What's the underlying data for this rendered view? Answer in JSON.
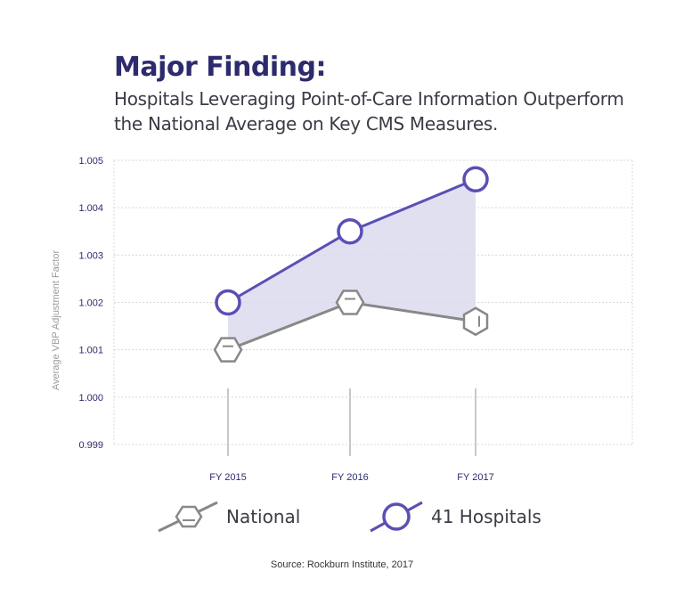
{
  "header": {
    "title": "Major Finding:",
    "subtitle": "Hospitals Leveraging Point-of-Care Information Outperform the National Average on Key CMS Measures."
  },
  "chart_data": {
    "type": "line",
    "categories": [
      "FY 2015",
      "FY 2016",
      "FY 2017"
    ],
    "ylabel": "Average VBP Adjustment Factor",
    "xlabel": "",
    "ylim": [
      0.999,
      1.005
    ],
    "yticks": [
      "1.005",
      "1.004",
      "1.003",
      "1.002",
      "1.001",
      "1.000",
      "0.999"
    ],
    "grid": true,
    "shaded_gap_between_series": true,
    "series": [
      {
        "name": "41 Hospitals",
        "values": [
          1.002,
          1.0035,
          1.0046
        ],
        "color": "#5a4fb5",
        "marker": "circle"
      },
      {
        "name": "National",
        "values": [
          1.001,
          1.002,
          1.0016
        ],
        "color": "#888888",
        "marker": "hexagon"
      }
    ],
    "legend_position": "bottom"
  },
  "legend": {
    "national": "National",
    "hospitals": "41 Hospitals"
  },
  "footer": {
    "source": "Source: Rockburn Institute, 2017"
  },
  "colors": {
    "hospitals": "#5a4fb5",
    "national": "#888888",
    "fill": "#dcdbee",
    "axis_text": "#2d2b6e",
    "grid": "#d8d8d8"
  }
}
